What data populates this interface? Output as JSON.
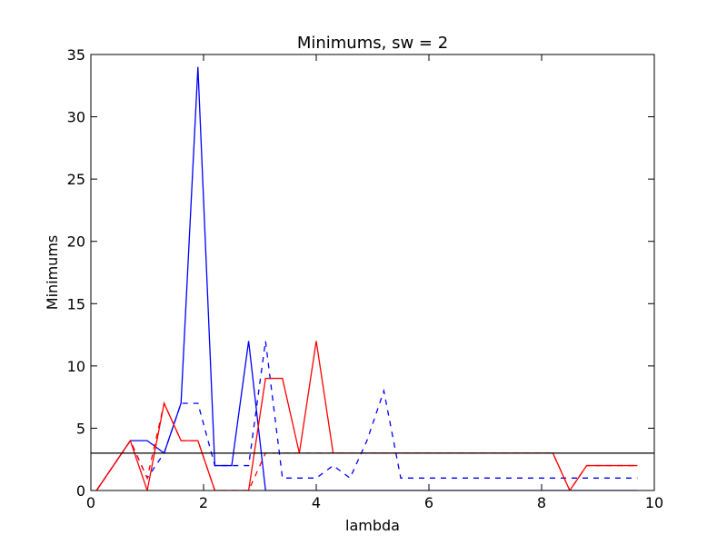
{
  "chart_data": {
    "type": "line",
    "title": "Minimums, sw = 2",
    "xlabel": "lambda",
    "ylabel": "Minimums",
    "xlim": [
      0,
      10
    ],
    "ylim": [
      0,
      35
    ],
    "xticks": [
      0,
      2,
      4,
      6,
      8,
      10
    ],
    "yticks": [
      0,
      5,
      10,
      15,
      20,
      25,
      30,
      35
    ],
    "grid": false,
    "hline": {
      "y": 3,
      "color": "#000000"
    },
    "series": [
      {
        "color": "#0000ff",
        "style": "solid",
        "x": [
          0.1,
          0.7,
          1.0,
          1.3,
          1.6,
          1.9,
          2.2,
          2.5,
          2.8,
          3.1,
          3.4,
          3.7,
          4.0,
          4.3,
          4.6,
          4.9,
          5.2,
          5.5,
          5.8,
          6.1,
          6.4,
          6.7,
          7.0,
          7.3,
          7.6,
          7.9,
          8.2,
          8.5,
          8.8,
          9.1,
          9.4,
          9.7
        ],
        "y": [
          0,
          4,
          4,
          3,
          7,
          34,
          2,
          2,
          12,
          0,
          0,
          0,
          0,
          0,
          0,
          0,
          0,
          0,
          0,
          0,
          0,
          0,
          0,
          0,
          0,
          0,
          0,
          0,
          0,
          0,
          0,
          0
        ]
      },
      {
        "color": "#0000ff",
        "style": "dashed",
        "x": [
          0.1,
          0.7,
          1.0,
          1.3,
          1.6,
          1.9,
          2.2,
          2.5,
          2.8,
          3.1,
          3.4,
          3.7,
          4.0,
          4.3,
          4.6,
          4.9,
          5.2,
          5.5,
          5.8,
          6.1,
          6.4,
          6.7,
          7.0,
          7.3,
          7.6,
          7.9,
          8.2,
          8.5,
          8.8,
          9.1,
          9.4,
          9.7
        ],
        "y": [
          0,
          4,
          1,
          3,
          7,
          7,
          2,
          2,
          2,
          12,
          1,
          1,
          1,
          2,
          1,
          4,
          8,
          1,
          1,
          1,
          1,
          1,
          1,
          1,
          1,
          1,
          1,
          1,
          1,
          1,
          1,
          1
        ]
      },
      {
        "color": "#ff0000",
        "style": "solid",
        "x": [
          0.1,
          0.7,
          1.0,
          1.3,
          1.6,
          1.9,
          2.2,
          2.5,
          2.8,
          3.1,
          3.4,
          3.7,
          4.0,
          4.3,
          4.6,
          4.9,
          5.2,
          5.5,
          5.8,
          6.1,
          6.4,
          6.7,
          7.0,
          7.3,
          7.6,
          7.9,
          8.2,
          8.5,
          8.8,
          9.1,
          9.4,
          9.7
        ],
        "y": [
          0,
          4,
          0,
          7,
          4,
          4,
          0,
          0,
          0,
          9,
          9,
          3,
          12,
          3,
          3,
          3,
          3,
          3,
          3,
          3,
          3,
          3,
          3,
          3,
          3,
          3,
          3,
          0,
          2,
          2,
          2,
          2
        ]
      },
      {
        "color": "#ff0000",
        "style": "dashed",
        "x": [
          0.1,
          0.7,
          1.0,
          1.3,
          1.6,
          1.9,
          2.2,
          2.5,
          2.8,
          3.1,
          3.4,
          3.7,
          4.0,
          4.3,
          4.6,
          4.9,
          5.2,
          5.5,
          5.8,
          6.1,
          6.4,
          6.7,
          7.0,
          7.3,
          7.6,
          7.9,
          8.2,
          8.5,
          8.8,
          9.1,
          9.4,
          9.7
        ],
        "y": [
          0,
          4,
          1,
          7,
          4,
          4,
          0,
          0,
          0,
          3,
          3,
          3,
          3,
          3,
          3,
          3,
          3,
          3,
          3,
          3,
          3,
          3,
          3,
          3,
          3,
          3,
          3,
          0,
          2,
          2,
          2,
          2
        ]
      }
    ]
  }
}
